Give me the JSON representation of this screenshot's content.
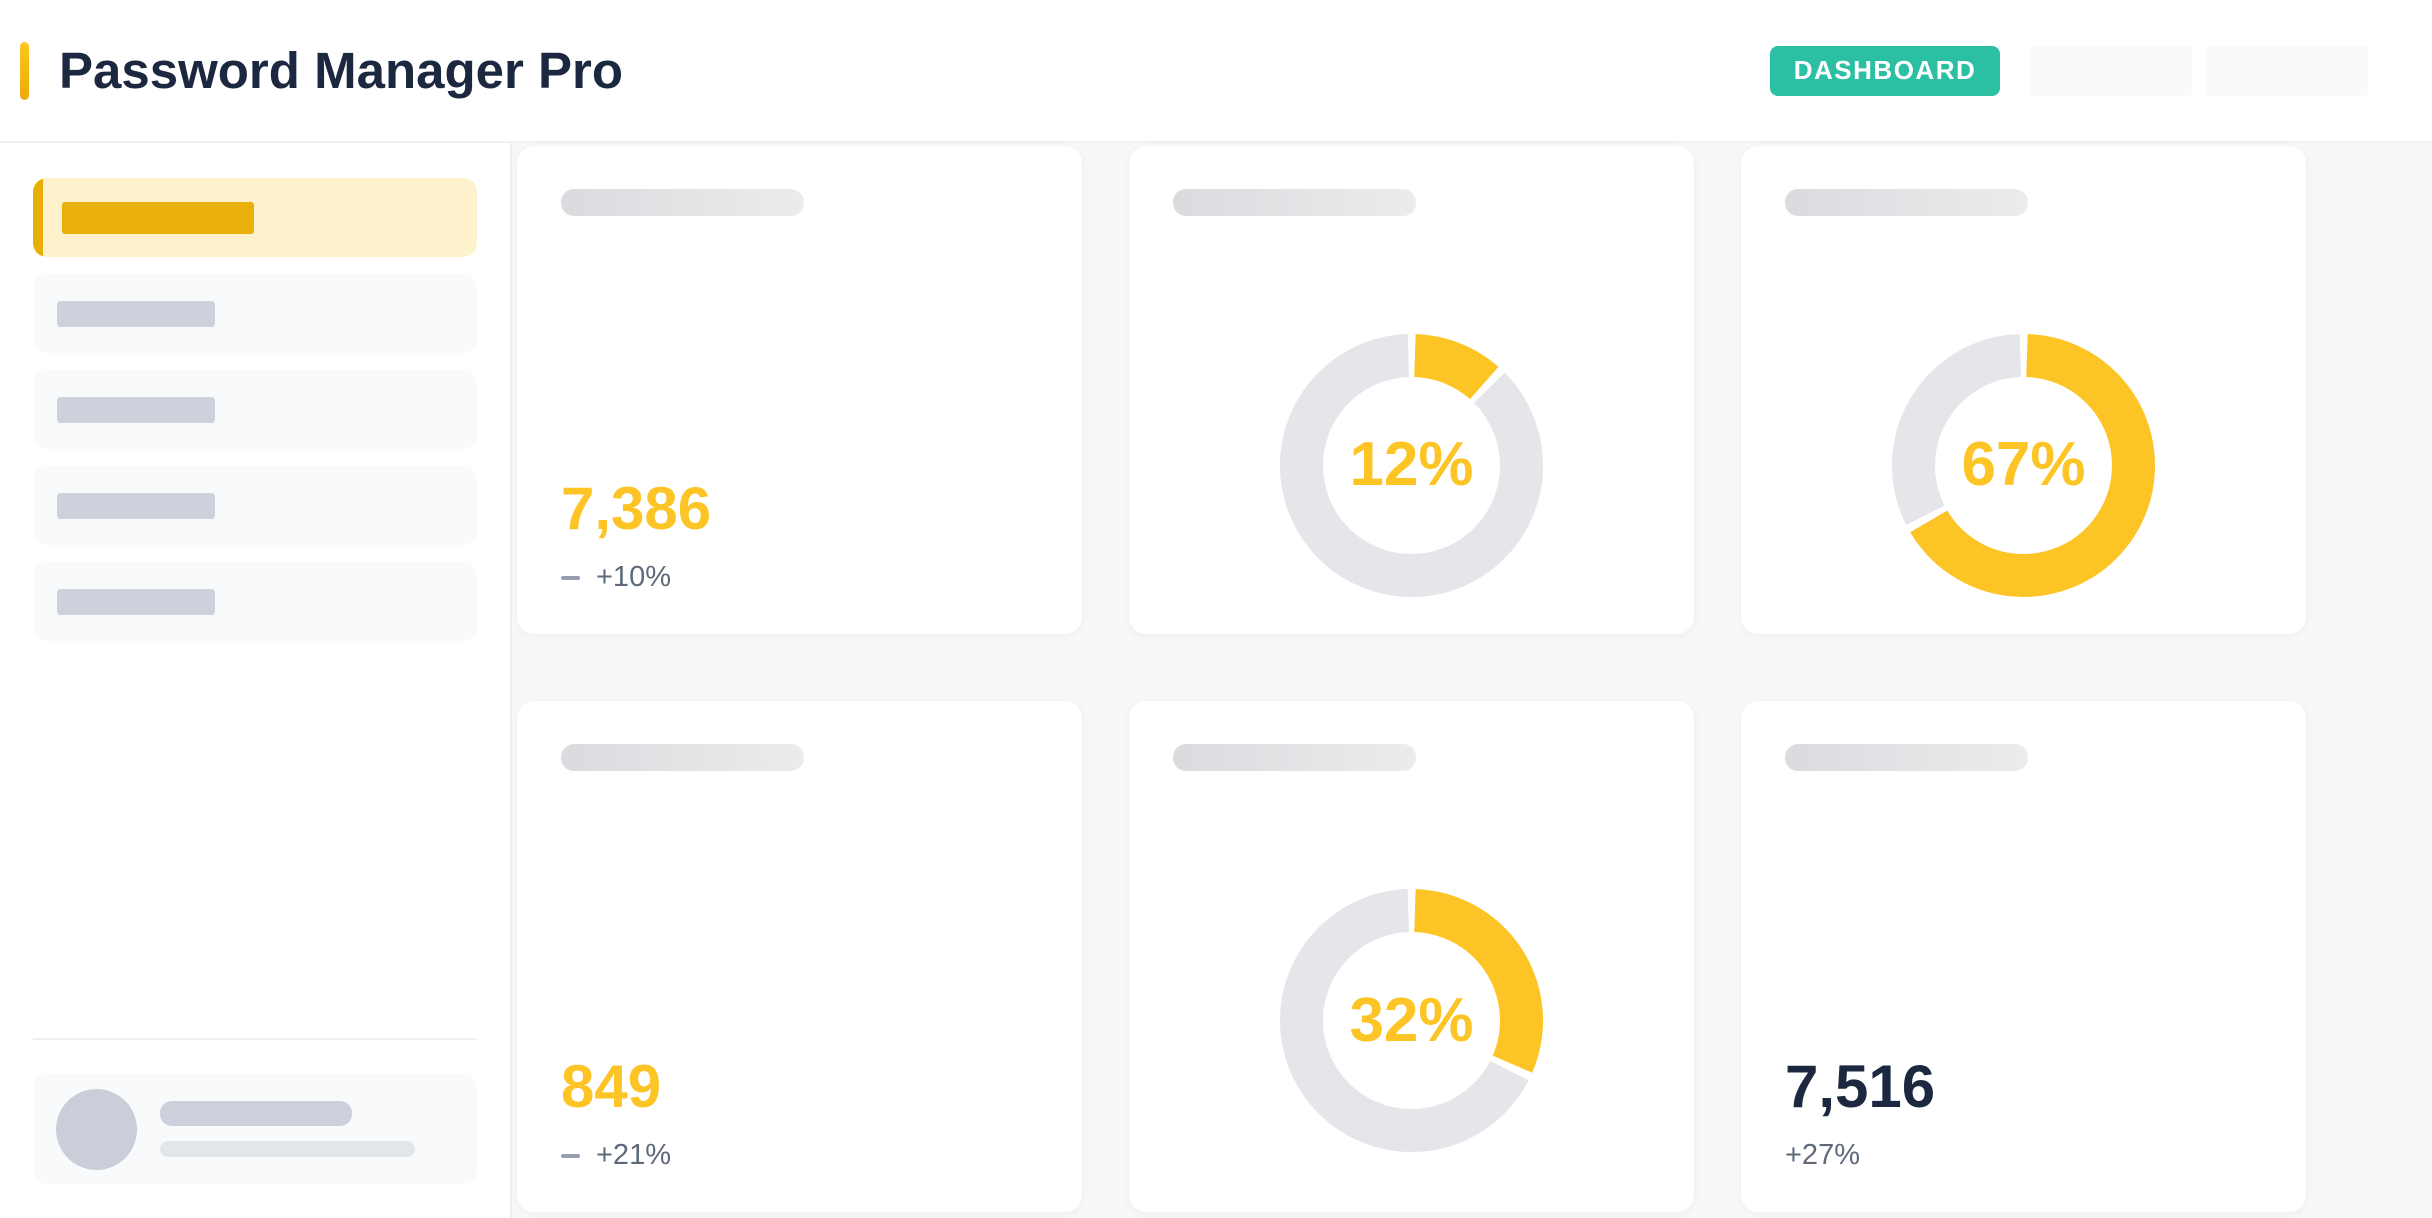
{
  "app": {
    "title": "Password Manager Pro"
  },
  "header": {
    "nav": {
      "dashboard_label": "DASHBOARD"
    }
  },
  "icons": {
    "trend_flat": "flat-dash"
  },
  "cards": [
    {
      "kind": "stat",
      "value": "7,386",
      "trend": "+10%"
    },
    {
      "kind": "donut",
      "percent": 12,
      "label": "12%"
    },
    {
      "kind": "donut",
      "percent": 67,
      "label": "67%"
    },
    {
      "kind": "stat",
      "value": "849",
      "trend": "+21%"
    },
    {
      "kind": "donut",
      "percent": 32,
      "label": "32%"
    },
    {
      "kind": "stat-dark",
      "value": "7,516",
      "trend": "+27%"
    }
  ],
  "colors": {
    "gold": "#fcc424",
    "gold-deep": "#e9ae08",
    "gold-bar": "#e9b00c",
    "gold-bg": "#fdf2cb",
    "teal": "#2bc0a4",
    "navy": "#1c2740",
    "track": "#e4e6ea",
    "page-bg": "#f7f8fa"
  }
}
